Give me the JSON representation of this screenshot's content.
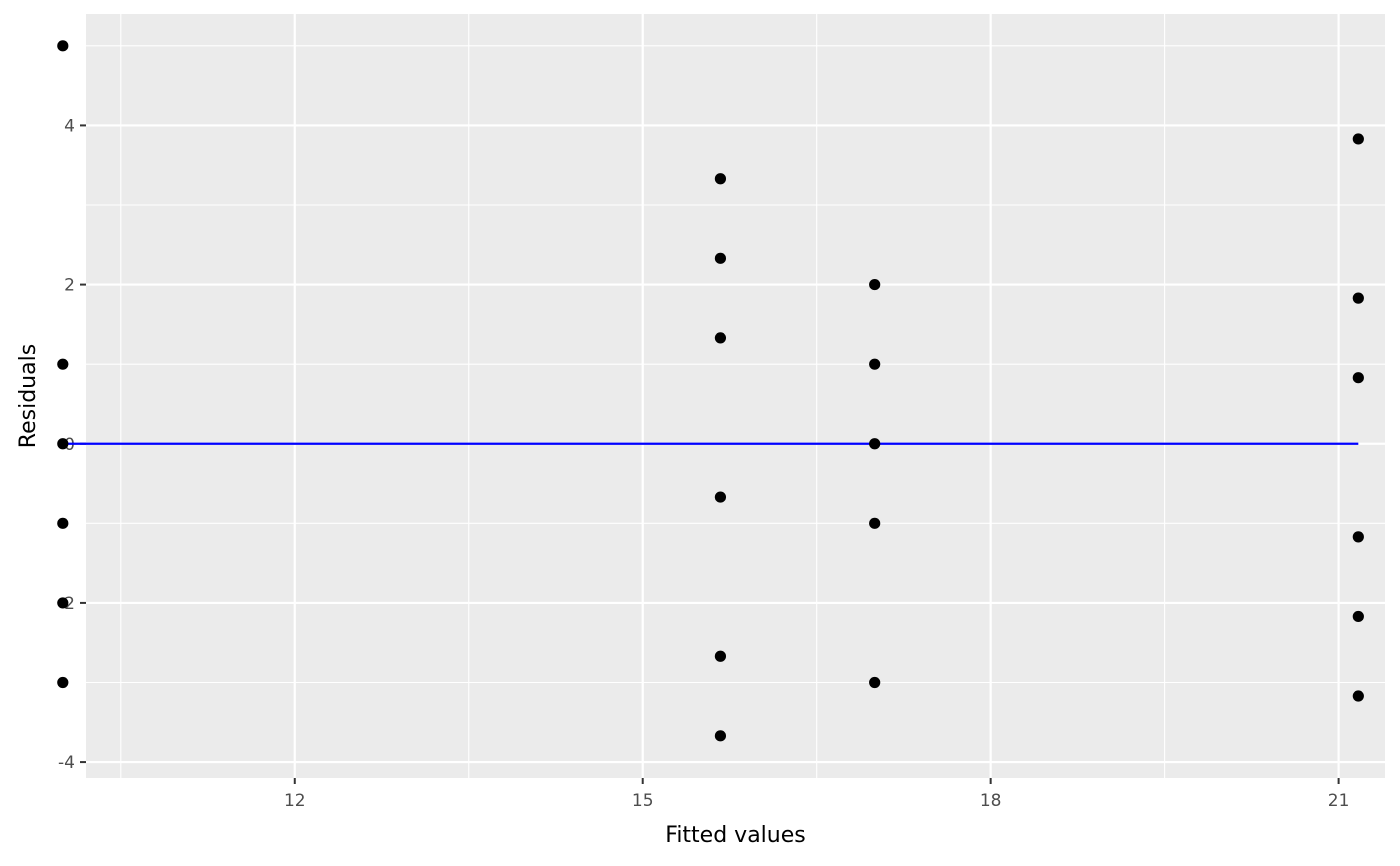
{
  "chart_data": {
    "type": "scatter",
    "title": "",
    "xlabel": "Fitted values",
    "ylabel": "Residuals",
    "xlim": [
      10.2,
      21.4
    ],
    "ylim": [
      -4.2,
      5.4
    ],
    "x_ticks": [
      12,
      15,
      18,
      21
    ],
    "x_tick_labels": [
      "12",
      "15",
      "18",
      "21"
    ],
    "y_ticks": [
      -4,
      -2,
      0,
      2,
      4
    ],
    "y_tick_labels": [
      "-4",
      "-2",
      "0",
      "2",
      "4"
    ],
    "grid": true,
    "panel_background": "#EBEBEB",
    "grid_color": "#FFFFFF",
    "point_color": "#000000",
    "reference_line": {
      "y": 0,
      "x_from": 10.0,
      "x_to": 21.17,
      "color": "#0000FF"
    },
    "points": [
      {
        "x": 10.0,
        "y": 5.0
      },
      {
        "x": 10.0,
        "y": 1.0
      },
      {
        "x": 10.0,
        "y": 0.0
      },
      {
        "x": 10.0,
        "y": -1.0
      },
      {
        "x": 10.0,
        "y": -2.0
      },
      {
        "x": 10.0,
        "y": -3.0
      },
      {
        "x": 15.67,
        "y": 3.33
      },
      {
        "x": 15.67,
        "y": 2.33
      },
      {
        "x": 15.67,
        "y": 1.33
      },
      {
        "x": 15.67,
        "y": -0.67
      },
      {
        "x": 15.67,
        "y": -2.67
      },
      {
        "x": 15.67,
        "y": -3.67
      },
      {
        "x": 17.0,
        "y": 2.0
      },
      {
        "x": 17.0,
        "y": 1.0
      },
      {
        "x": 17.0,
        "y": 0.0
      },
      {
        "x": 17.0,
        "y": -1.0
      },
      {
        "x": 17.0,
        "y": -3.0
      },
      {
        "x": 21.17,
        "y": 3.83
      },
      {
        "x": 21.17,
        "y": 1.83
      },
      {
        "x": 21.17,
        "y": 0.83
      },
      {
        "x": 21.17,
        "y": -1.17
      },
      {
        "x": 21.17,
        "y": -2.17
      },
      {
        "x": 21.17,
        "y": -3.17
      }
    ]
  }
}
